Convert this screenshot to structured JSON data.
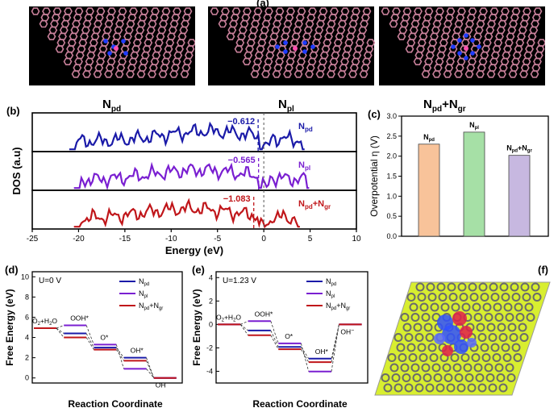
{
  "labels": {
    "a": "(a)",
    "b": "(b)",
    "c": "(c)",
    "d": "(d)",
    "e": "(e)",
    "f": "(f)"
  },
  "structures": [
    {
      "main": "N",
      "sub": "pd",
      "extra": ""
    },
    {
      "main": "N",
      "sub": "pl",
      "extra": ""
    },
    {
      "main": "N",
      "sub": "pd",
      "extra": "+N",
      "extra_sub": "gr"
    }
  ],
  "colors": {
    "pd": "#1a1aa8",
    "pl": "#7a1fd1",
    "gr": "#c0161a",
    "bar_pd": "#f8c39a",
    "bar_pl": "#a6e0a6",
    "bar_gr": "#c7b8e0",
    "lattice": "#c8809a",
    "dopant": "#1e3cff",
    "graphene_f": "#d8ee30"
  },
  "chart_data": [
    {
      "id": "b",
      "type": "line",
      "xlabel": "Energy (eV)",
      "ylabel": "DOS (a.u)",
      "xlim": [
        -25,
        10
      ],
      "xticks": [
        -25,
        -20,
        -15,
        -10,
        -5,
        0,
        5,
        10
      ],
      "series": [
        {
          "name": "Npd",
          "legend_main": "N",
          "legend_sub": "pd",
          "annotation": "−0.612",
          "center": -0.612,
          "range": [
            -21,
            4.5
          ]
        },
        {
          "name": "Npl",
          "legend_main": "N",
          "legend_sub": "pl",
          "annotation": "−0.565",
          "center": -0.565,
          "range": [
            -20.5,
            5
          ]
        },
        {
          "name": "Npd+Ngr",
          "legend_main": "N",
          "legend_sub": "pd",
          "legend_extra": "+N",
          "legend_extra_sub": "gr",
          "annotation": "−1.083",
          "center": -1.083,
          "range": [
            -20.5,
            4
          ]
        }
      ]
    },
    {
      "id": "c",
      "type": "bar",
      "ylabel": "Overpotential η (V)",
      "ylim": [
        0,
        3.0
      ],
      "yticks": [
        "0.0",
        "0.5",
        "1.0",
        "1.5",
        "2.0",
        "2.5",
        "3.0"
      ],
      "categories": [
        "Npd",
        "Npl",
        "Npd+Ngr"
      ],
      "values": [
        2.3,
        2.6,
        2.02
      ]
    },
    {
      "id": "d",
      "type": "line",
      "annotation": "U=0 V",
      "xlabel": "Reaction Coordinate",
      "ylabel": "Free Energy (eV)",
      "ylim": [
        -0.5,
        10.5
      ],
      "yticks": [
        "0",
        "2",
        "4",
        "6",
        "8",
        "10"
      ],
      "states": [
        "O2+H2O",
        "OOH*",
        "O*",
        "OH*",
        "OH-"
      ],
      "series": [
        {
          "name": "Npd",
          "values": [
            4.92,
            4.4,
            3.0,
            2.0,
            0
          ]
        },
        {
          "name": "Npl",
          "values": [
            4.92,
            5.2,
            3.3,
            0.9,
            0
          ]
        },
        {
          "name": "Npd+Ngr",
          "values": [
            4.92,
            4.0,
            2.8,
            1.7,
            0
          ]
        }
      ]
    },
    {
      "id": "e",
      "type": "line",
      "annotation": "U=1.23 V",
      "xlabel": "Reaction Coordinate",
      "ylabel": "Free Energy (eV)",
      "ylim": [
        -5,
        4.5
      ],
      "yticks": [
        "4",
        "2",
        "0",
        "-2",
        "-4"
      ],
      "states": [
        "O2+H2O",
        "OOH*",
        "O*",
        "OH*",
        "OH-"
      ],
      "series": [
        {
          "name": "Npd",
          "values": [
            0,
            -0.52,
            -1.92,
            -2.92,
            0
          ]
        },
        {
          "name": "Npl",
          "values": [
            0,
            0.28,
            -1.62,
            -4.02,
            0
          ]
        },
        {
          "name": "Npd+Ngr",
          "values": [
            0,
            -0.92,
            -2.12,
            -3.22,
            0
          ]
        }
      ]
    }
  ]
}
